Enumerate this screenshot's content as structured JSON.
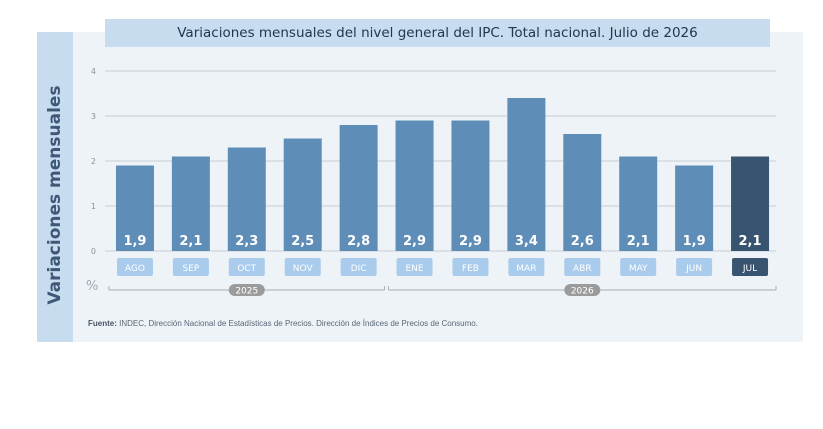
{
  "title": "Variaciones mensuales del nivel general del IPC. Total nacional. Julio de 2026",
  "ylabel": "Variaciones mensuales",
  "unit": "%",
  "footnote": {
    "label": "Fuente:",
    "text": "INDEC, Dirección Nacional de Estadísticas de Precios. Dirección de Índices de Precios de Consumo."
  },
  "colors": {
    "bar": "#5e8db8",
    "bar_highlight": "#385470",
    "month_tag": "#a9cbec",
    "month_tag_highlight": "#385470",
    "year_pill": "#9b9b9b",
    "grid": "#c8cdd3"
  },
  "chart_data": {
    "type": "bar",
    "categories": [
      "AGO",
      "SEP",
      "OCT",
      "NOV",
      "DIC",
      "ENE",
      "FEB",
      "MAR",
      "ABR",
      "MAY",
      "JUN",
      "JUL"
    ],
    "values": [
      1.9,
      2.1,
      2.3,
      2.5,
      2.8,
      2.9,
      2.9,
      3.4,
      2.6,
      2.1,
      1.9,
      2.1
    ],
    "value_labels": [
      "1,9",
      "2,1",
      "2,3",
      "2,5",
      "2,8",
      "2,9",
      "2,9",
      "3,4",
      "2,6",
      "2,1",
      "1,9",
      "2,1"
    ],
    "highlight_index": 11,
    "ylim": [
      0,
      4
    ],
    "yticks": [
      0,
      1,
      2,
      3,
      4
    ],
    "grid": true,
    "years": [
      {
        "label": "2025",
        "first_index": 0,
        "last_index": 4
      },
      {
        "label": "2026",
        "first_index": 5,
        "last_index": 11
      }
    ]
  }
}
